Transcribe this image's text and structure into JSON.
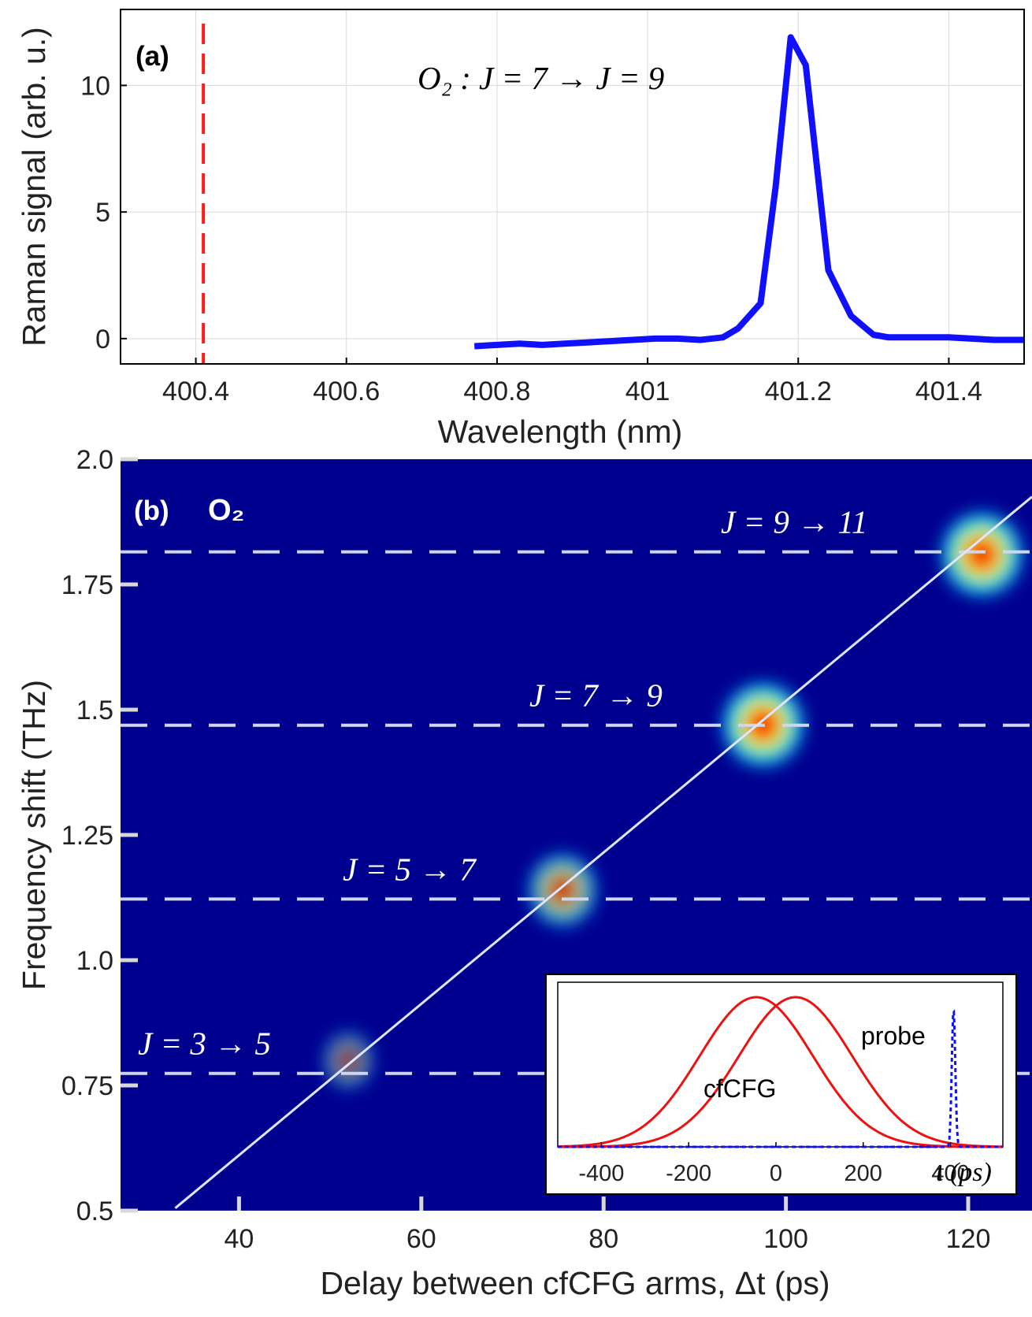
{
  "chart_data": [
    {
      "panel": "a",
      "type": "line",
      "panel_label": "(a)",
      "xlabel": "Wavelength (nm)",
      "ylabel": "Raman signal (arb. u.)",
      "annotation": "O₂ :  J = 7 → J = 9",
      "xlim": [
        400.3,
        401.5
      ],
      "ylim": [
        -1,
        13
      ],
      "xticks": [
        400.4,
        400.6,
        400.8,
        401,
        401.2,
        401.4
      ],
      "xtick_labels": [
        "400.4",
        "400.6",
        "400.8",
        "401",
        "401.2",
        "401.4"
      ],
      "yticks": [
        0,
        5,
        10
      ],
      "ytick_labels": [
        "0",
        "5",
        "10"
      ],
      "grid": true,
      "colors": {
        "signal": "#1010ff",
        "marker": "#ff1a1a"
      },
      "reference_line": {
        "x": 400.41,
        "style": "dashed"
      },
      "series": [
        {
          "x": [
            400.77,
            400.8,
            400.83,
            400.86,
            400.89,
            400.92,
            400.95,
            400.98,
            401.01,
            401.04,
            401.07,
            401.1,
            401.12,
            401.15,
            401.17,
            401.19,
            401.21,
            401.24,
            401.27,
            401.3,
            401.32,
            401.34,
            401.37,
            401.4,
            401.43,
            401.46,
            401.5
          ],
          "y": [
            -0.3,
            -0.25,
            -0.2,
            -0.25,
            -0.2,
            -0.15,
            -0.1,
            -0.05,
            0.0,
            0.0,
            -0.05,
            0.05,
            0.4,
            1.4,
            6.0,
            11.9,
            10.8,
            2.7,
            0.9,
            0.15,
            0.05,
            0.05,
            0.05,
            0.05,
            0.0,
            -0.05,
            -0.05
          ]
        }
      ]
    },
    {
      "panel": "b",
      "type": "heatmap",
      "panel_label": "(b)",
      "species_label": "O₂",
      "xlabel": "Delay between cfCFG arms, Δt (ps)",
      "ylabel": "Frequency shift (THz)",
      "xlim": [
        27,
        127
      ],
      "ylim": [
        0.5,
        2.0
      ],
      "xticks": [
        40,
        60,
        80,
        100,
        120
      ],
      "xtick_labels": [
        "40",
        "60",
        "80",
        "100",
        "120"
      ],
      "yticks": [
        0.5,
        0.75,
        1.0,
        1.25,
        1.5,
        1.75,
        2.0
      ],
      "ytick_labels": [
        "0.5",
        "0.75",
        "1.0",
        "1.25",
        "1.5",
        "1.75",
        "2.0"
      ],
      "background_color": "#00008f",
      "diagonal_line": {
        "x": [
          33,
          127
        ],
        "y": [
          0.505,
          1.925
        ]
      },
      "transitions": [
        {
          "label": "J = 3 → 5",
          "freq": 0.774
        },
        {
          "label": "J = 5 → 7",
          "freq": 1.122
        },
        {
          "label": "J = 7 → 9",
          "freq": 1.469
        },
        {
          "label": "J = 9 → 11",
          "freq": 1.815
        }
      ],
      "spots": [
        {
          "delay": 52.0,
          "freq": 0.8,
          "intensity": 0.3
        },
        {
          "delay": 75.5,
          "freq": 1.14,
          "intensity": 0.7
        },
        {
          "delay": 97.5,
          "freq": 1.47,
          "intensity": 1.0
        },
        {
          "delay": 121.5,
          "freq": 1.81,
          "intensity": 1.0
        }
      ]
    },
    {
      "panel": "b-inset",
      "type": "line",
      "xlabel": "t (ps)",
      "xlim": [
        -500,
        520
      ],
      "ylim": [
        0,
        1.1
      ],
      "xticks": [
        -400,
        -200,
        0,
        200,
        400
      ],
      "xtick_labels": [
        "-400",
        "-200",
        "0",
        "200",
        "400"
      ],
      "annotations": [
        "cfCFG",
        "probe"
      ],
      "colors": {
        "pulses": "#ee1111",
        "probe": "#1010ff"
      },
      "series": [
        {
          "name": "cfCFG",
          "center": -45,
          "sigma": 130,
          "amplitude": 1.0
        },
        {
          "name": "cfCFG",
          "center": 45,
          "sigma": 130,
          "amplitude": 1.0
        },
        {
          "name": "probe",
          "center": 407,
          "sigma": 4,
          "amplitude": 0.92
        }
      ]
    }
  ]
}
